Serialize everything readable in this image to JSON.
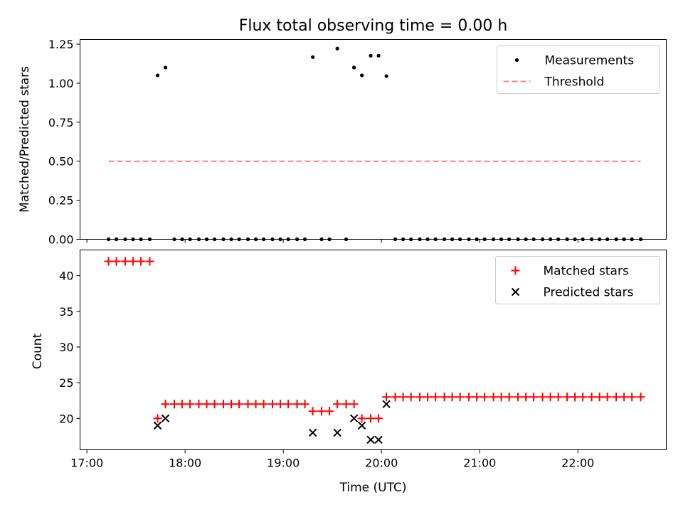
{
  "chart_data": [
    {
      "type": "scatter",
      "title": "Flux total observing time = 0.00 h",
      "xlabel": "",
      "ylabel": "Matched/Predicted stars",
      "ylim": [
        0.0,
        1.28
      ],
      "yticks": [
        0.0,
        0.25,
        0.5,
        0.75,
        1.0,
        1.25
      ],
      "ytick_labels": [
        "0.00",
        "0.25",
        "0.50",
        "0.75",
        "1.00",
        "1.25"
      ],
      "xlim_hours": [
        16.93,
        22.9
      ],
      "legend_position": "top-right",
      "grid": false,
      "series": [
        {
          "name": "Measurements",
          "kind": "points",
          "color": "#000000",
          "x_hours": [
            17.22,
            17.3,
            17.39,
            17.47,
            17.55,
            17.64,
            17.72,
            17.8,
            17.89,
            17.97,
            18.05,
            18.14,
            18.22,
            18.3,
            18.39,
            18.47,
            18.55,
            18.64,
            18.72,
            18.8,
            18.89,
            18.97,
            19.05,
            19.14,
            19.22,
            19.3,
            19.39,
            19.47,
            19.55,
            19.64,
            19.72,
            19.8,
            19.89,
            19.97,
            20.05,
            20.14,
            20.22,
            20.3,
            20.39,
            20.47,
            20.55,
            20.64,
            20.72,
            20.8,
            20.89,
            20.97,
            21.05,
            21.14,
            21.22,
            21.3,
            21.39,
            21.47,
            21.55,
            21.64,
            21.72,
            21.8,
            21.89,
            21.97,
            22.05,
            22.14,
            22.22,
            22.3,
            22.39,
            22.47,
            22.55,
            22.64
          ],
          "y": [
            0,
            0,
            0,
            0,
            0,
            0,
            1.05,
            1.1,
            0,
            0,
            0,
            0,
            0,
            0,
            0,
            0,
            0,
            0,
            0,
            0,
            0,
            0,
            0,
            0,
            0,
            1.167,
            0,
            0,
            1.222,
            0,
            1.1,
            1.05,
            1.176,
            1.176,
            1.045,
            0,
            0,
            0,
            0,
            0,
            0,
            0,
            0,
            0,
            0,
            0,
            0,
            0,
            0,
            0,
            0,
            0,
            0,
            0,
            0,
            0,
            0,
            0,
            0,
            0,
            0,
            0,
            0,
            0,
            0,
            0
          ]
        },
        {
          "name": "Threshold",
          "kind": "line",
          "color": "#ff7f7f",
          "dash": true,
          "x_hours": [
            17.22,
            22.64
          ],
          "y": [
            0.5,
            0.5
          ]
        }
      ]
    },
    {
      "type": "scatter",
      "title": "",
      "xlabel": "Time (UTC)",
      "ylabel": "Count",
      "ylim": [
        15.6,
        43.6
      ],
      "yticks": [
        20,
        25,
        30,
        35,
        40
      ],
      "ytick_labels": [
        "20",
        "25",
        "30",
        "35",
        "40"
      ],
      "xlim_hours": [
        16.93,
        22.9
      ],
      "xticks_hours": [
        17,
        18,
        19,
        20,
        21,
        22
      ],
      "xtick_labels": [
        "17:00",
        "18:00",
        "19:00",
        "20:00",
        "21:00",
        "22:00"
      ],
      "legend_position": "top-right",
      "grid": false,
      "series": [
        {
          "name": "Matched stars",
          "marker": "plus",
          "color": "#ff0000",
          "x_hours": [
            17.22,
            17.3,
            17.39,
            17.47,
            17.55,
            17.64,
            17.72,
            17.8,
            17.89,
            17.97,
            18.05,
            18.14,
            18.22,
            18.3,
            18.39,
            18.47,
            18.55,
            18.64,
            18.72,
            18.8,
            18.89,
            18.97,
            19.05,
            19.14,
            19.22,
            19.3,
            19.39,
            19.47,
            19.55,
            19.64,
            19.72,
            19.8,
            19.89,
            19.97,
            20.05,
            20.14,
            20.22,
            20.3,
            20.39,
            20.47,
            20.55,
            20.64,
            20.72,
            20.8,
            20.89,
            20.97,
            21.05,
            21.14,
            21.22,
            21.3,
            21.39,
            21.47,
            21.55,
            21.64,
            21.72,
            21.8,
            21.89,
            21.97,
            22.05,
            22.14,
            22.22,
            22.3,
            22.39,
            22.47,
            22.55,
            22.64
          ],
          "y": [
            42,
            42,
            42,
            42,
            42,
            42,
            20,
            22,
            22,
            22,
            22,
            22,
            22,
            22,
            22,
            22,
            22,
            22,
            22,
            22,
            22,
            22,
            22,
            22,
            22,
            21,
            21,
            21,
            22,
            22,
            22,
            20,
            20,
            20,
            23,
            23,
            23,
            23,
            23,
            23,
            23,
            23,
            23,
            23,
            23,
            23,
            23,
            23,
            23,
            23,
            23,
            23,
            23,
            23,
            23,
            23,
            23,
            23,
            23,
            23,
            23,
            23,
            23,
            23,
            23,
            23
          ]
        },
        {
          "name": "Predicted stars",
          "marker": "x",
          "color": "#000000",
          "x_hours": [
            17.72,
            17.8,
            19.3,
            19.55,
            19.72,
            19.8,
            19.89,
            19.97,
            20.05
          ],
          "y": [
            19,
            20,
            18,
            18,
            20,
            19,
            17,
            17,
            22
          ]
        }
      ]
    }
  ]
}
